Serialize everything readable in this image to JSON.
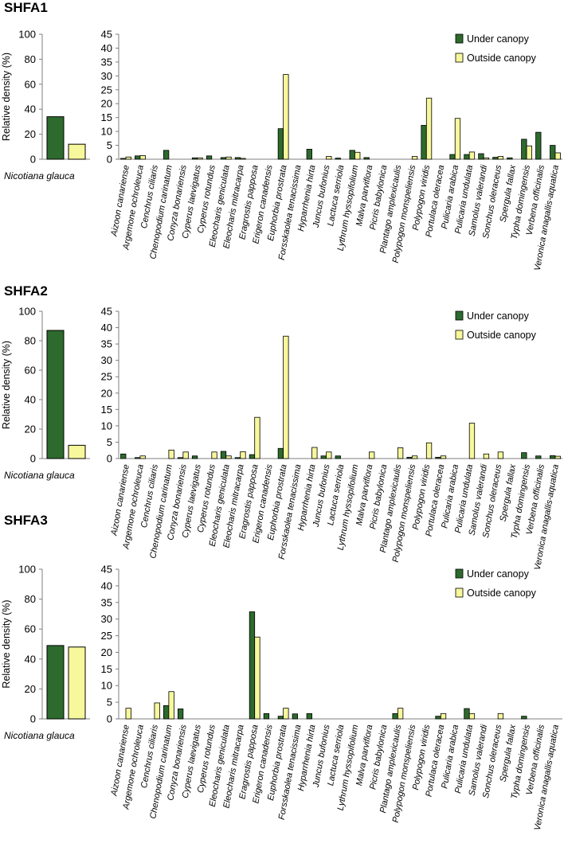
{
  "chart_data": [
    {
      "type": "bar",
      "title": "SHFA1",
      "left_panel": {
        "xlabel": "Nicotiana glauca",
        "ylabel": "Relative density (%)",
        "ylim": [
          0,
          100
        ],
        "yticks": [
          0,
          20,
          40,
          60,
          80,
          100
        ],
        "series": [
          {
            "name": "Under canopy",
            "values": [
              34
            ]
          },
          {
            "name": "Outside canopy",
            "values": [
              12
            ]
          }
        ]
      },
      "main_panel": {
        "ylim": [
          0,
          45
        ],
        "yticks": [
          0,
          5,
          10,
          15,
          20,
          25,
          30,
          35,
          40,
          45
        ],
        "legend": "top-right",
        "categories": [
          "Aizoon canariense",
          "Argemone ochroleuca",
          "Cenchrus ciliaris",
          "Chenopodium carinatum",
          "Conyza bonariensis",
          "Cyperus laevigatus",
          "Cyperus rotundus",
          "Eleocharis geniculata",
          "Eleocharis mitracarpa",
          "Eragrostis papposa",
          "Erigeron canadensis",
          "Euphorbia prostrata",
          "Forsskaolea tenacissima",
          "Hyparrhenia hirta",
          "Juncus bufonius",
          "Lactuca serriola",
          "Lythrum hyssopifolium",
          "Malva parviflora",
          "Picris babylonica",
          "Plantago amplexicaulis",
          "Polypogon monspeliensis",
          "Polypogon viridis",
          "Portulaca oleracea",
          "Pulicaria arabica",
          "Pulicaria undulata",
          "Samolus valerandi",
          "Sonchus oleraceus",
          "Spergula fallax",
          "Typha domingensis",
          "Verbena officinalis",
          "Veronica anagallis-aquatica"
        ],
        "series": [
          {
            "name": "Under canopy",
            "values": [
              0.3,
              1.2,
              0,
              3.2,
              0,
              0.5,
              1.2,
              0.6,
              0.6,
              0,
              0,
              11,
              0,
              3.6,
              0,
              0.4,
              3.2,
              0.6,
              0,
              0,
              0,
              12.2,
              0,
              1.7,
              1.7,
              2,
              0.7,
              0.5,
              7.2,
              9.7,
              5
            ]
          },
          {
            "name": "Outside canopy",
            "values": [
              0.8,
              1.3,
              0,
              0,
              0,
              0.5,
              0,
              0.8,
              0.3,
              0,
              0,
              30.5,
              0,
              0,
              1,
              0,
              2.5,
              0,
              0,
              0,
              1,
              22,
              0,
              14.7,
              2.6,
              0.5,
              1,
              0,
              4.8,
              0,
              2.3
            ]
          }
        ]
      }
    },
    {
      "type": "bar",
      "title": "SHFA2",
      "left_panel": {
        "xlabel": "Nicotiana glauca",
        "ylabel": "Relative density (%)",
        "ylim": [
          0,
          100
        ],
        "yticks": [
          0,
          20,
          40,
          60,
          80,
          100
        ],
        "series": [
          {
            "name": "Under canopy",
            "values": [
              87
            ]
          },
          {
            "name": "Outside canopy",
            "values": [
              9
            ]
          }
        ]
      },
      "main_panel": {
        "ylim": [
          0,
          45
        ],
        "yticks": [
          0,
          5,
          10,
          15,
          20,
          25,
          30,
          35,
          40,
          45
        ],
        "legend": "top-right",
        "categories": [
          "Aizoon canariense",
          "Argemone ochroleuca",
          "Cenchrus ciliaris",
          "Chenopodium carinatum",
          "Conyza bonariensis",
          "Cyperus laevigatus",
          "Cyperus rotundus",
          "Eleocharis geniculata",
          "Eleocharis mitracarpa",
          "Eragrostis papposa",
          "Erigeron canadensis",
          "Euphorbia prostrata",
          "Forsskaolea tenacissima",
          "Hyparrhenia hirta",
          "Juncus bufonius",
          "Lactuca serriola",
          "Lythrum hyssopifolium",
          "Malva parviflora",
          "Picris babylonica",
          "Plantago amplexicaulis",
          "Polypogon monspeliensis",
          "Polypogon viridis",
          "Portulaca oleracea",
          "Pulicaria arabica",
          "Pulicaria undulata",
          "Samolus valerandi",
          "Sonchus oleraceus",
          "Spergula fallax",
          "Typha domingensis",
          "Verbena officinalis",
          "Veronica anagallis-aquatica"
        ],
        "series": [
          {
            "name": "Under canopy",
            "values": [
              1.4,
              0.3,
              0,
              0,
              0.3,
              0.8,
              0,
              2.2,
              0.3,
              1.2,
              0,
              3.1,
              0,
              0,
              0.8,
              0.8,
              0,
              0,
              0,
              0,
              0.4,
              0,
              0.4,
              0,
              0,
              0,
              0,
              0,
              1.8,
              0.8,
              0.9
            ]
          },
          {
            "name": "Outside canopy",
            "values": [
              0,
              0.8,
              0,
              2.6,
              2,
              0,
              2,
              0.8,
              2.1,
              12.6,
              0,
              37.4,
              0,
              3.4,
              2,
              0,
              0,
              2,
              0,
              3.3,
              0.8,
              4.8,
              0.8,
              0,
              10.8,
              1.4,
              2,
              0,
              0,
              0,
              0.7
            ]
          }
        ]
      }
    },
    {
      "type": "bar",
      "title": "SHFA3",
      "left_panel": {
        "xlabel": "Nicotiana glauca",
        "ylabel": "Relative density (%)",
        "ylim": [
          0,
          100
        ],
        "yticks": [
          0,
          20,
          40,
          60,
          80,
          100
        ],
        "series": [
          {
            "name": "Under canopy",
            "values": [
              49
            ]
          },
          {
            "name": "Outside canopy",
            "values": [
              48
            ]
          }
        ]
      },
      "main_panel": {
        "ylim": [
          0,
          45
        ],
        "yticks": [
          0,
          5,
          10,
          15,
          20,
          25,
          30,
          35,
          40,
          45
        ],
        "legend": "top-right",
        "categories": [
          "Aizoon canariense",
          "Argemone ochroleuca",
          "Cenchrus ciliaris",
          "Chenopodium carinatum",
          "Conyza bonariensis",
          "Cyperus laevigatus",
          "Cyperus rotundus",
          "Eleocharis geniculata",
          "Eleocharis mitracarpa",
          "Eragrostis papposa",
          "Erigeron canadensis",
          "Euphorbia prostrata",
          "Forsskaolea tenacissima",
          "Hyparrhenia hirta",
          "Juncus bufonius",
          "Lactuca serriola",
          "Lythrum hyssopifolium",
          "Malva parviflora",
          "Picris babylonica",
          "Plantago amplexicaulis",
          "Polypogon monspeliensis",
          "Polypogon viridis",
          "Portulaca oleracea",
          "Pulicaria arabica",
          "Pulicaria undulata",
          "Samolus valerandi",
          "Sonchus oleraceus",
          "Spergula fallax",
          "Typha domingensis",
          "Verbena officinalis",
          "Veronica anagallis-aquatica"
        ],
        "series": [
          {
            "name": "Under canopy",
            "values": [
              0,
              0,
              0,
              4,
              3,
              0,
              0,
              0,
              0,
              32.2,
              1.6,
              0.8,
              1.5,
              1.6,
              0,
              0,
              0,
              0,
              0,
              1.6,
              0,
              0,
              0.8,
              0,
              3.1,
              0,
              0,
              0,
              0.8,
              0,
              0
            ]
          },
          {
            "name": "Outside canopy",
            "values": [
              3.2,
              0,
              4.8,
              8.2,
              0,
              0,
              0,
              0,
              0,
              24.6,
              0,
              3.2,
              0,
              0,
              0,
              0,
              0,
              0,
              0,
              3.2,
              0,
              0,
              1.6,
              0,
              1.6,
              0,
              1.6,
              0,
              0,
              0,
              0
            ]
          }
        ]
      }
    }
  ],
  "colors": {
    "under": "#2d6a2d",
    "outside": "#f7f79c",
    "stroke": "#000000",
    "axis": "#7f7f7f"
  }
}
